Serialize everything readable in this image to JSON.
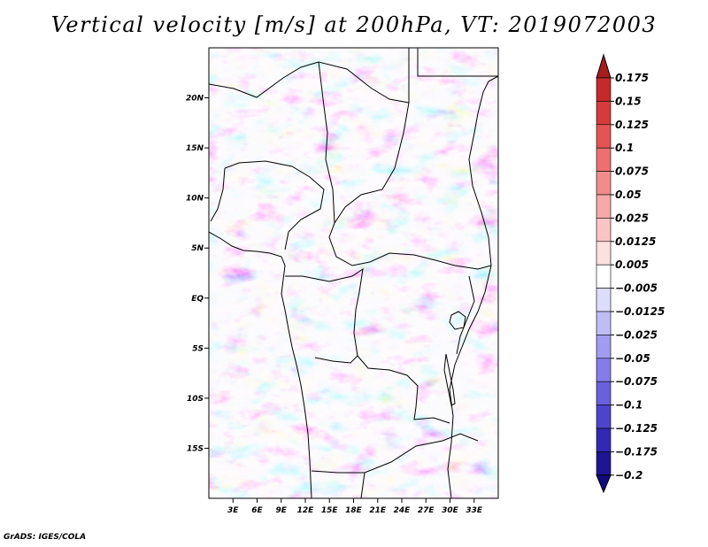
{
  "title": "Vertical velocity [m/s] at 200hPa, VT: 2019072003",
  "credit": "GrADS: IGES/COLA",
  "map": {
    "lon_min": 0,
    "lon_max": 36,
    "lat_min": -20,
    "lat_max": 25,
    "lat_ticks": [
      {
        "value": 20,
        "label": "20N"
      },
      {
        "value": 15,
        "label": "15N"
      },
      {
        "value": 10,
        "label": "10N"
      },
      {
        "value": 5,
        "label": "5N"
      },
      {
        "value": 0,
        "label": "EQ"
      },
      {
        "value": -5,
        "label": "5S"
      },
      {
        "value": -10,
        "label": "10S"
      },
      {
        "value": -15,
        "label": "15S"
      }
    ],
    "lon_ticks": [
      {
        "value": 3,
        "label": "3E"
      },
      {
        "value": 6,
        "label": "6E"
      },
      {
        "value": 9,
        "label": "9E"
      },
      {
        "value": 12,
        "label": "12E"
      },
      {
        "value": 15,
        "label": "15E"
      },
      {
        "value": 18,
        "label": "18E"
      },
      {
        "value": 21,
        "label": "21E"
      },
      {
        "value": 24,
        "label": "24E"
      },
      {
        "value": 27,
        "label": "27E"
      },
      {
        "value": 30,
        "label": "30E"
      },
      {
        "value": 33,
        "label": "33E"
      }
    ]
  },
  "colorbar": {
    "levels": [
      {
        "label": "0.175",
        "color": "#a81c1c"
      },
      {
        "label": "0.15",
        "color": "#c42a2a"
      },
      {
        "label": "0.125",
        "color": "#d63b3b"
      },
      {
        "label": "0.1",
        "color": "#e45454"
      },
      {
        "label": "0.075",
        "color": "#ec7070"
      },
      {
        "label": "0.05",
        "color": "#f28c8c"
      },
      {
        "label": "0.025",
        "color": "#f7a8a8"
      },
      {
        "label": "0.0125",
        "color": "#fac4c4"
      },
      {
        "label": "0.005",
        "color": "#fde0e0"
      },
      {
        "label": "−0.005",
        "color": "#ffffff"
      },
      {
        "label": "−0.0125",
        "color": "#dedcfb"
      },
      {
        "label": "−0.025",
        "color": "#c0bcf6"
      },
      {
        "label": "−0.05",
        "color": "#a29cf0"
      },
      {
        "label": "−0.075",
        "color": "#857ce8"
      },
      {
        "label": "−0.1",
        "color": "#6860dc"
      },
      {
        "label": "−0.125",
        "color": "#4c44cc"
      },
      {
        "label": "−0.175",
        "color": "#3228b4"
      },
      {
        "label": "−0.2",
        "color": "#1e1494"
      }
    ],
    "lower_extension_color": "#120a82"
  }
}
